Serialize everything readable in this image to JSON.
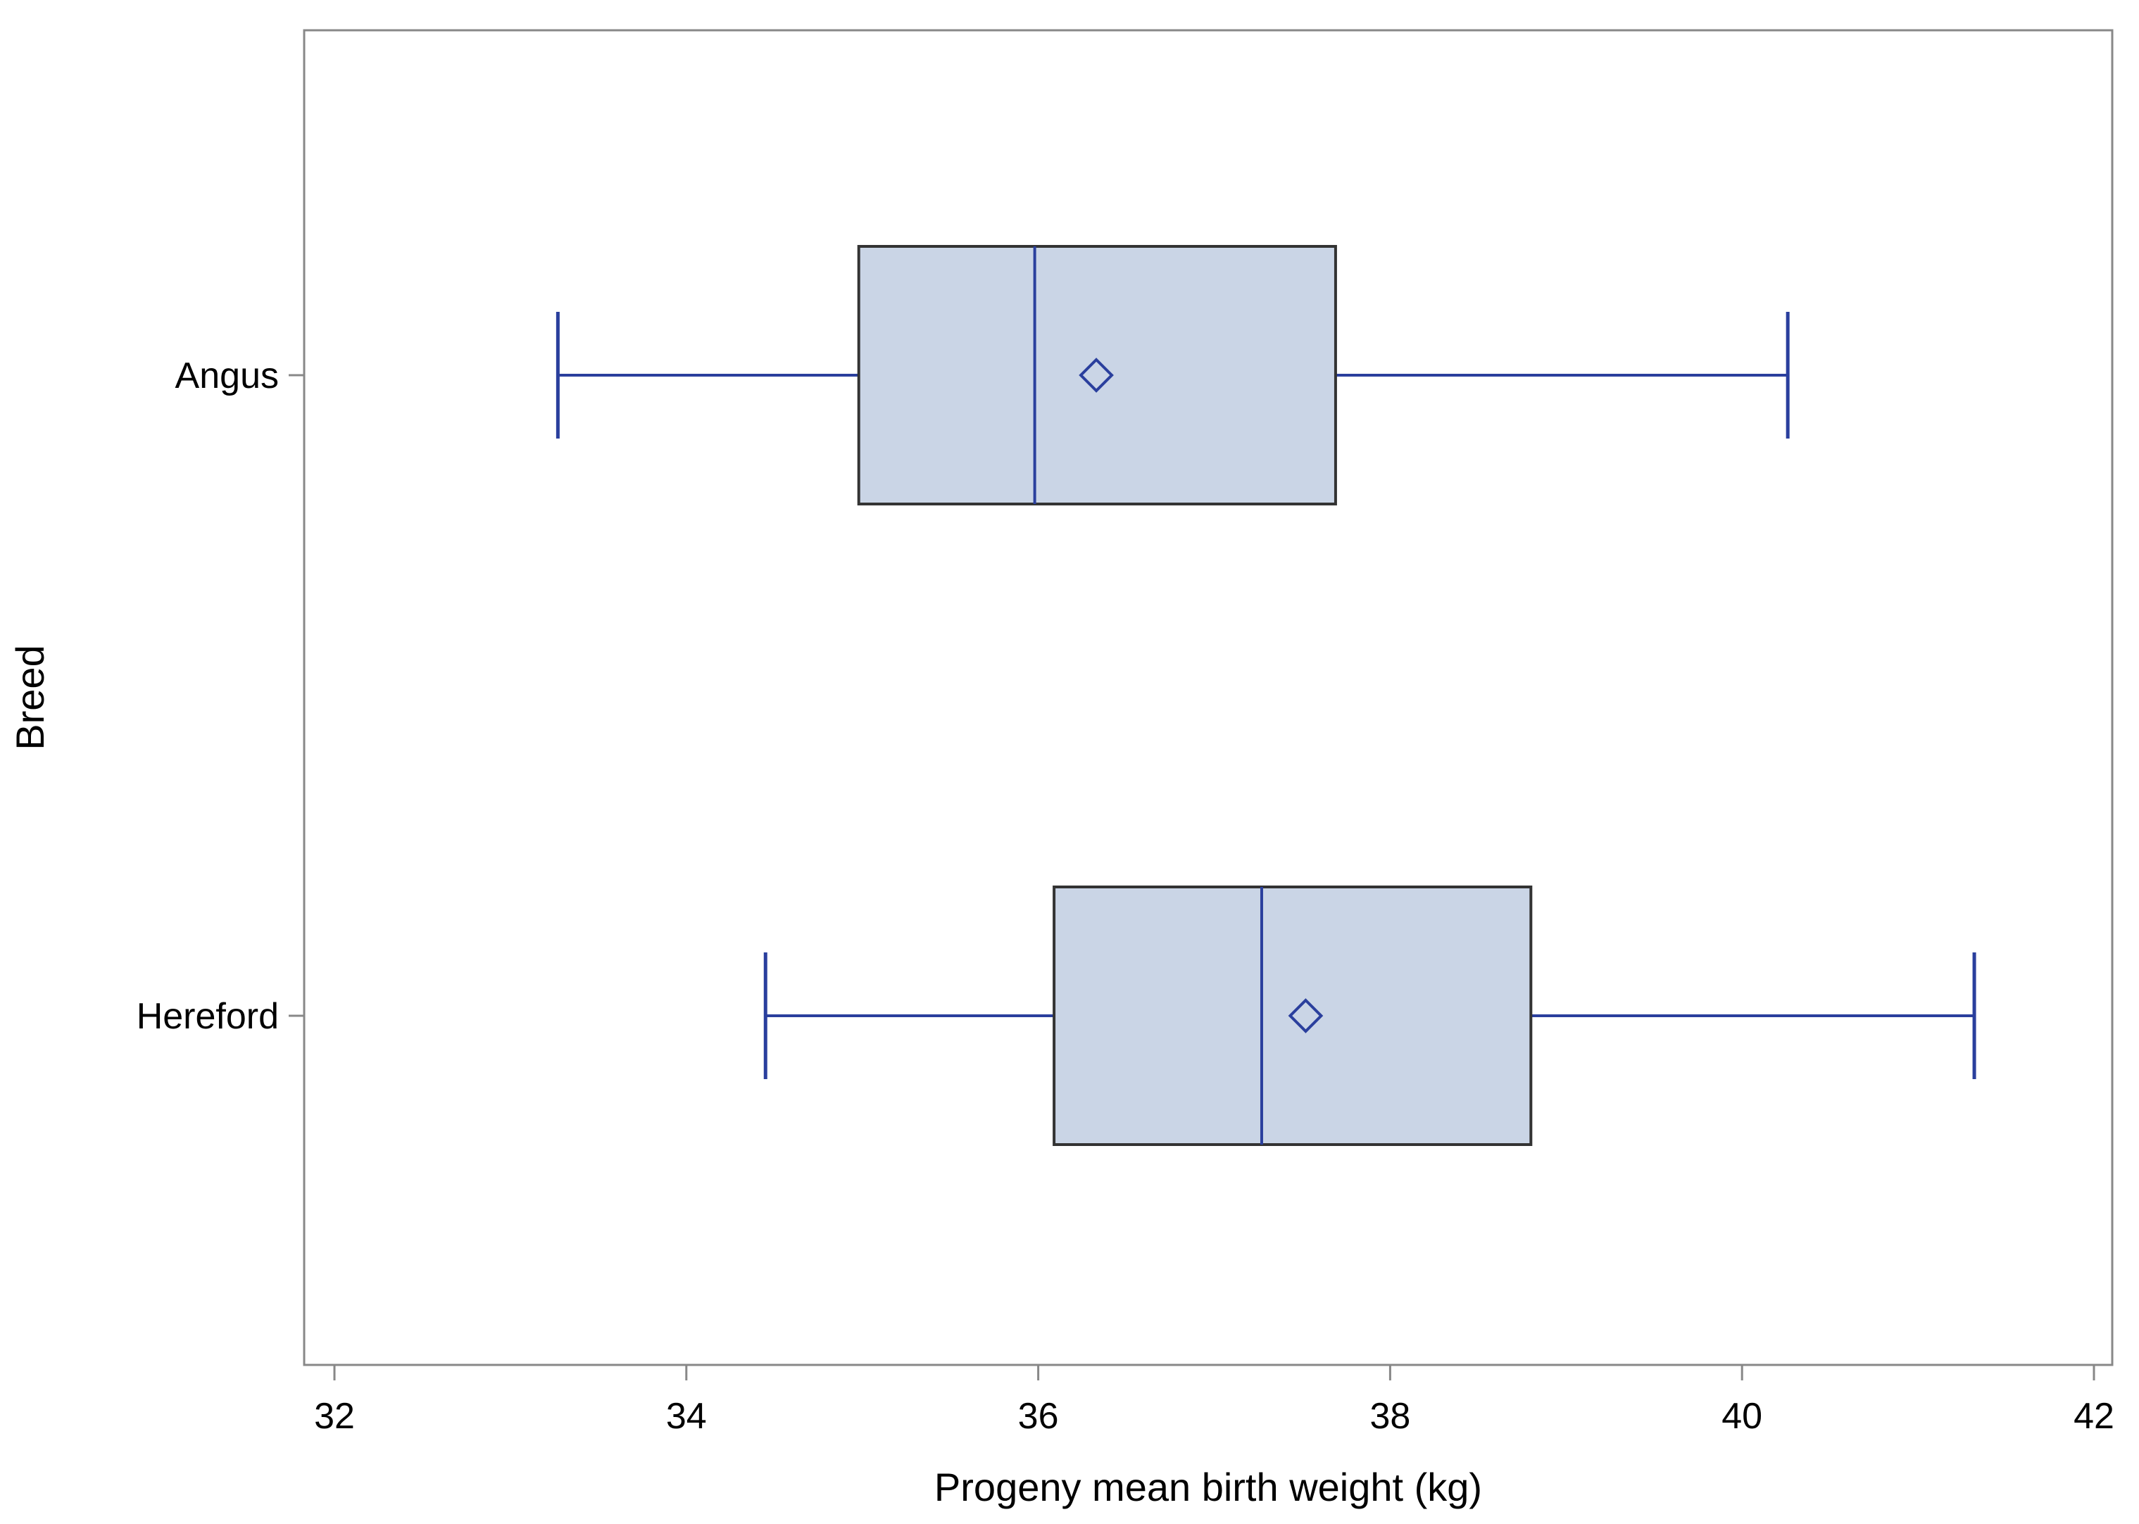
{
  "chart_data": {
    "type": "boxplot",
    "orientation": "horizontal",
    "xlabel": "Progeny mean birth weight (kg)",
    "ylabel": "Breed",
    "xlim": [
      32,
      42
    ],
    "xticks": [
      32,
      34,
      36,
      38,
      40,
      42
    ],
    "xtick_labels": [
      "32",
      "34",
      "36",
      "38",
      "40",
      "42"
    ],
    "grid": false,
    "categories": [
      "Angus",
      "Hereford"
    ],
    "boxes": [
      {
        "category": "Angus",
        "whisker_low": 33.27,
        "q1": 34.98,
        "median": 35.98,
        "q3": 37.69,
        "whisker_high": 40.26,
        "mean": 36.33
      },
      {
        "category": "Hereford",
        "whisker_low": 34.45,
        "q1": 36.09,
        "median": 37.27,
        "q3": 38.8,
        "whisker_high": 41.32,
        "mean": 37.52
      }
    ],
    "colors": {
      "box_fill": "#cad5e6",
      "box_edge": "#333333",
      "line": "#2a3f9d",
      "frame": "#888888"
    }
  }
}
